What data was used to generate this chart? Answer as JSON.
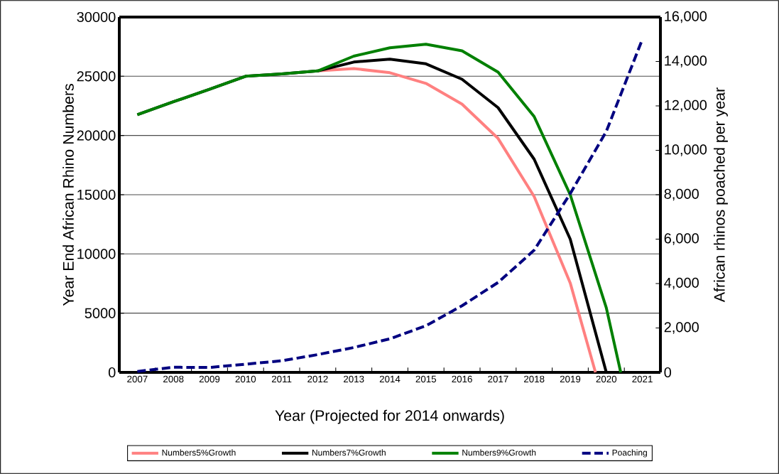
{
  "chart_data": {
    "type": "line",
    "xlabel": "Year (Projected for 2014 onwards)",
    "ylabel": "Year End African Rhino Numbers",
    "y2label": "African rhinos poached per year",
    "xlim": [
      2006.5,
      2021.5
    ],
    "xticks": [
      2007,
      2008,
      2009,
      2010,
      2011,
      2012,
      2013,
      2014,
      2015,
      2016,
      2017,
      2018,
      2019,
      2020,
      2021
    ],
    "ylim": [
      0,
      30000
    ],
    "yticks": [
      0,
      5000,
      10000,
      15000,
      20000,
      25000,
      30000
    ],
    "y2lim": [
      0,
      16000
    ],
    "y2ticks": [
      0,
      {
        "value": 2000,
        "label": "2,000"
      },
      {
        "value": 4000,
        "label": "4,000"
      },
      {
        "value": 6000,
        "label": "6,000"
      },
      {
        "value": 8000,
        "label": "8,000"
      },
      {
        "value": 10000,
        "label": "10,000"
      },
      {
        "value": 12000,
        "label": "12,000"
      },
      {
        "value": 14000,
        "label": "14,000"
      },
      {
        "value": 16000,
        "label": "16,000"
      }
    ],
    "grid": "y",
    "legend": "bottom",
    "marker": "none",
    "series": [
      {
        "name": "Numbers5%Growth",
        "color": "#ff8080",
        "line_style": "solid",
        "x": [
          2012,
          2013,
          2014,
          2015,
          2016,
          2017,
          2018,
          2019,
          2019.7
        ],
        "values": [
          25450,
          25650,
          25300,
          24400,
          22650,
          19750,
          14850,
          7550,
          0
        ]
      },
      {
        "name": "Numbers7%Growth",
        "color": "#000000",
        "line_style": "solid",
        "x": [
          2007,
          2008,
          2009,
          2010,
          2011,
          2012,
          2013,
          2014,
          2015,
          2016,
          2017,
          2018,
          2019,
          2020
        ],
        "values": [
          21750,
          22850,
          23900,
          25000,
          25200,
          25450,
          26200,
          26450,
          26050,
          24750,
          22350,
          18000,
          11250,
          0
        ]
      },
      {
        "name": "Numbers9%Growth",
        "color": "#008000",
        "line_style": "solid",
        "x": [
          2007,
          2008,
          2009,
          2010,
          2011,
          2012,
          2013,
          2014,
          2015,
          2016,
          2017,
          2018,
          2019,
          2020,
          2020.4
        ],
        "values": [
          21750,
          22850,
          23900,
          25000,
          25200,
          25450,
          26700,
          27400,
          27700,
          27150,
          25350,
          21600,
          15000,
          5450,
          0
        ]
      },
      {
        "name": "Poaching",
        "color": "#000080",
        "line_style": "dashed",
        "axis": "y2",
        "x": [
          2007,
          2008,
          2009,
          2010,
          2011,
          2012,
          2013,
          2014,
          2015,
          2016,
          2017,
          2018,
          2019,
          2020,
          2021
        ],
        "values": [
          40,
          230,
          220,
          370,
          520,
          800,
          1120,
          1510,
          2100,
          3000,
          4050,
          5500,
          8050,
          10850,
          15000
        ]
      }
    ]
  }
}
